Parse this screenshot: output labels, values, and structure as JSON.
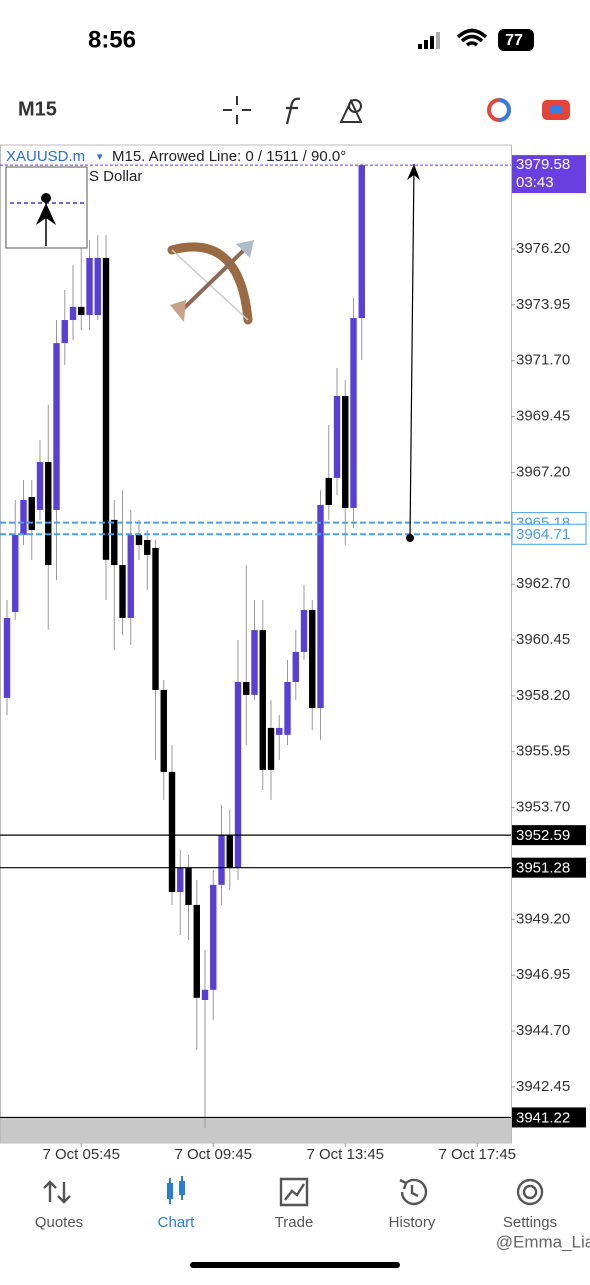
{
  "status_bar": {
    "time": "8:56",
    "battery": "77"
  },
  "toolbar": {
    "timeframe": "M15"
  },
  "chart_header": {
    "symbol": "XAUUSD.m",
    "symbol_menu": "▾",
    "info": "M15. Arrowed Line: 0 / 1511 / 90.0°",
    "subtitle": "S Dollar"
  },
  "chart_data": {
    "type": "candlestick",
    "up_color": "#5a3fd4",
    "down_color": "#000000",
    "open": [
      3958.12,
      3961.58,
      3964.68,
      3966.21,
      3965.69,
      3967.62,
      3965.69,
      3972.41,
      3973.34,
      3973.87,
      3973.54,
      3973.54,
      3975.84,
      3965.29,
      3963.47,
      3961.34,
      3964.68,
      3964.48,
      3964.16,
      3958.44,
      3955.14,
      3950.3,
      3951.27,
      3949.78,
      3945.95,
      3946.36,
      3950.59,
      3952.6,
      3951.27,
      3958.76,
      3958.24,
      3960.85,
      3956.91,
      3956.63,
      3956.63,
      3958.76,
      3959.97,
      3961.66,
      3957.71,
      3966.98,
      3966.98,
      3970.28,
      3965.77,
      3973.42
    ],
    "high": [
      3962.06,
      3966.09,
      3966.9,
      3966.9,
      3968.51,
      3969.92,
      3973.34,
      3974.55,
      3975.56,
      3976.64,
      3976.56,
      3976.76,
      3976.76,
      3966.09,
      3966.49,
      3965.69,
      3965.29,
      3964.88,
      3964.48,
      3958.84,
      3956.22,
      3951.99,
      3951.79,
      3950.79,
      3947.97,
      3951.19,
      3953.81,
      3953.61,
      3960.45,
      3963.47,
      3962.06,
      3962.06,
      3958.04,
      3957.43,
      3959.65,
      3960.86,
      3962.67,
      3962.06,
      3966.49,
      3969.11,
      3971.41,
      3970.92,
      3974.23,
      3979.66
    ],
    "low": [
      3957.43,
      3961.26,
      3964.28,
      3963.68,
      3965.29,
      3960.86,
      3962.87,
      3971.53,
      3972.54,
      3972.94,
      3972.94,
      3973.34,
      3962.06,
      3960.05,
      3960.65,
      3960.25,
      3963.68,
      3962.47,
      3955.62,
      3954.01,
      3949.78,
      3948.57,
      3948.37,
      3943.94,
      3940.8,
      3945.15,
      3949.78,
      3950.38,
      3950.79,
      3956.22,
      3958.04,
      3954.41,
      3954.01,
      3955.62,
      3956.22,
      3958.04,
      3959.65,
      3956.83,
      3956.43,
      3965.29,
      3966.29,
      3964.28,
      3964.96,
      3971.73
    ],
    "close": [
      3961.34,
      3964.68,
      3966.09,
      3964.88,
      3967.62,
      3963.47,
      3972.41,
      3973.34,
      3973.87,
      3973.54,
      3975.84,
      3975.84,
      3963.68,
      3963.47,
      3961.34,
      3964.68,
      3964.28,
      3963.88,
      3958.44,
      3955.14,
      3950.3,
      3951.27,
      3949.78,
      3946.04,
      3946.36,
      3950.59,
      3952.6,
      3951.27,
      3958.76,
      3958.24,
      3960.85,
      3955.22,
      3955.22,
      3956.91,
      3958.76,
      3959.97,
      3961.66,
      3957.71,
      3965.89,
      3965.89,
      3970.28,
      3965.77,
      3973.42,
      3979.58
    ],
    "ylim": [
      3940.19,
      3980.39
    ],
    "yticks": [
      {
        "value": 3976.2,
        "label": "3976.20"
      },
      3973.95,
      {
        "value": 3971.7,
        "label": "3971.70"
      },
      3969.45,
      {
        "value": 3967.2,
        "label": "3967.20"
      },
      {
        "value": 3962.7,
        "label": "3962.70"
      },
      3960.45,
      {
        "value": 3958.2,
        "label": "3958.20"
      },
      3955.95,
      {
        "value": 3953.7,
        "label": "3953.70"
      },
      {
        "value": 3949.2,
        "label": "3949.20"
      },
      3946.95,
      {
        "value": 3944.7,
        "label": "3944.70"
      },
      3942.45
    ],
    "xlim": [
      -0.85,
      61.09
    ],
    "xticks": [
      {
        "value": 9,
        "label": "7 Oct 05:45"
      },
      {
        "value": 25,
        "label": "7 Oct 09:45"
      },
      {
        "value": 41,
        "label": "7 Oct 13:45"
      },
      {
        "value": 57,
        "label": "7 Oct 17:45"
      }
    ],
    "price_lines": [
      {
        "value": 3952.59,
        "color": "#000000",
        "style": "solid"
      },
      {
        "value": 3951.28,
        "color": "#000000",
        "style": "solid"
      },
      {
        "value": 3941.22,
        "color": "#000000",
        "style": "solid"
      },
      {
        "value": 3965.18,
        "color": "#4a9ee8",
        "style": "dashed"
      },
      {
        "value": 3964.71,
        "color": "#4a9ee8",
        "style": "dashed"
      }
    ],
    "current_price": {
      "value": 3979.58,
      "countdown": "03:43",
      "color": "#6a3fe0"
    }
  },
  "tabs": [
    "Quotes",
    "Chart",
    "Trade",
    "History",
    "Settings"
  ],
  "active_tab": 1,
  "watermark": "@Emma_Lia"
}
